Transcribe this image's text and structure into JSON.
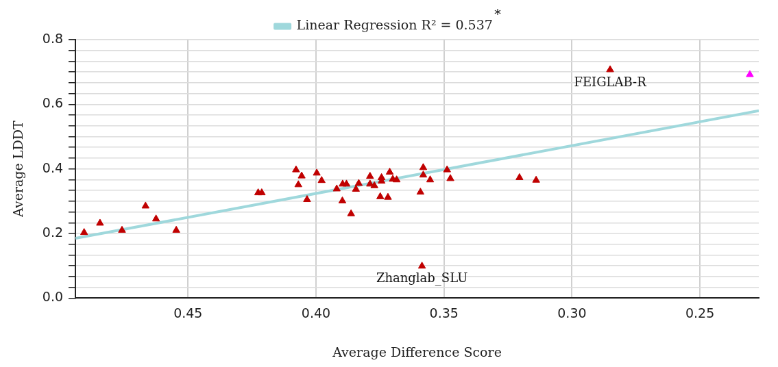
{
  "chart_data": {
    "type": "scatter",
    "xlabel": "Average Difference Score",
    "ylabel": "Average LDDT",
    "xlim": [
      0.494,
      0.227
    ],
    "xticks": [
      0.45,
      {
        "value": 0.4,
        "label": "0.40"
      },
      0.35,
      {
        "value": 0.3,
        "label": "0.30"
      },
      0.25
    ],
    "ylim": [
      0,
      0.8
    ],
    "yticks": [
      {
        "value": 0,
        "label": "0.0"
      },
      {
        "value": 0.0333,
        "label": null
      },
      {
        "value": 0.0667,
        "label": null
      },
      {
        "value": 0.1,
        "label": null
      },
      {
        "value": 0.1333,
        "label": null
      },
      {
        "value": 0.1667,
        "label": null
      },
      {
        "value": 0.2,
        "label": "0.2"
      },
      {
        "value": 0.2333,
        "label": null
      },
      {
        "value": 0.2667,
        "label": null
      },
      {
        "value": 0.3,
        "label": null
      },
      {
        "value": 0.3333,
        "label": null
      },
      {
        "value": 0.3667,
        "label": null
      },
      {
        "value": 0.4,
        "label": "0.4"
      },
      {
        "value": 0.4333,
        "label": null
      },
      {
        "value": 0.4667,
        "label": null
      },
      {
        "value": 0.5,
        "label": null
      },
      {
        "value": 0.5333,
        "label": null
      },
      {
        "value": 0.5667,
        "label": null
      },
      {
        "value": 0.6,
        "label": "0.6"
      },
      {
        "value": 0.6333,
        "label": null
      },
      {
        "value": 0.6667,
        "label": null
      },
      {
        "value": 0.7,
        "label": null
      },
      {
        "value": 0.7333,
        "label": null
      },
      {
        "value": 0.7667,
        "label": null
      },
      {
        "value": 0.8,
        "label": "0.8"
      }
    ],
    "grid": true,
    "legend": "top",
    "marker": "triangle",
    "series": [
      {
        "type": "line",
        "name": "Linear Regression R² = 0.537",
        "color": "#9fd8dc",
        "marker": "none",
        "x": [
          0.494,
          0.227
        ],
        "values": [
          0.185,
          0.58
        ]
      },
      {
        "color": "#c00000",
        "x": [
          0.4906,
          0.4844,
          0.4758,
          0.4666,
          0.4625,
          0.4546,
          0.4226,
          0.4212,
          0.4078,
          0.4056,
          0.4069,
          0.4035,
          0.3997,
          0.3978,
          0.3919,
          0.3896,
          0.3881,
          0.3897,
          0.3863,
          0.3844,
          0.3833,
          0.3789,
          0.3789,
          0.3772,
          0.3749,
          0.3744,
          0.3744,
          0.3719,
          0.3712,
          0.37,
          0.3685,
          0.3592,
          0.3581,
          0.3581,
          0.3554,
          0.3586,
          0.3488,
          0.3475,
          0.3205,
          0.314,
          0.2851
        ],
        "values": [
          0.203,
          0.232,
          0.21,
          0.285,
          0.245,
          0.21,
          0.326,
          0.326,
          0.397,
          0.378,
          0.351,
          0.305,
          0.387,
          0.364,
          0.338,
          0.353,
          0.353,
          0.301,
          0.261,
          0.337,
          0.355,
          0.377,
          0.353,
          0.348,
          0.314,
          0.373,
          0.362,
          0.312,
          0.39,
          0.368,
          0.366,
          0.328,
          0.404,
          0.381,
          0.366,
          0.099,
          0.397,
          0.37,
          0.373,
          0.365,
          0.707
        ]
      },
      {
        "color": "#ff00ff",
        "x": [
          0.2305
        ],
        "values": [
          0.692
        ]
      }
    ],
    "annotations": [
      "*",
      {
        "text": "FEIGLAB-R",
        "x": 0.2851,
        "y": 0.707
      },
      {
        "text": "Zhanglab_SLU",
        "x": 0.3586,
        "y": 0.099
      }
    ]
  }
}
